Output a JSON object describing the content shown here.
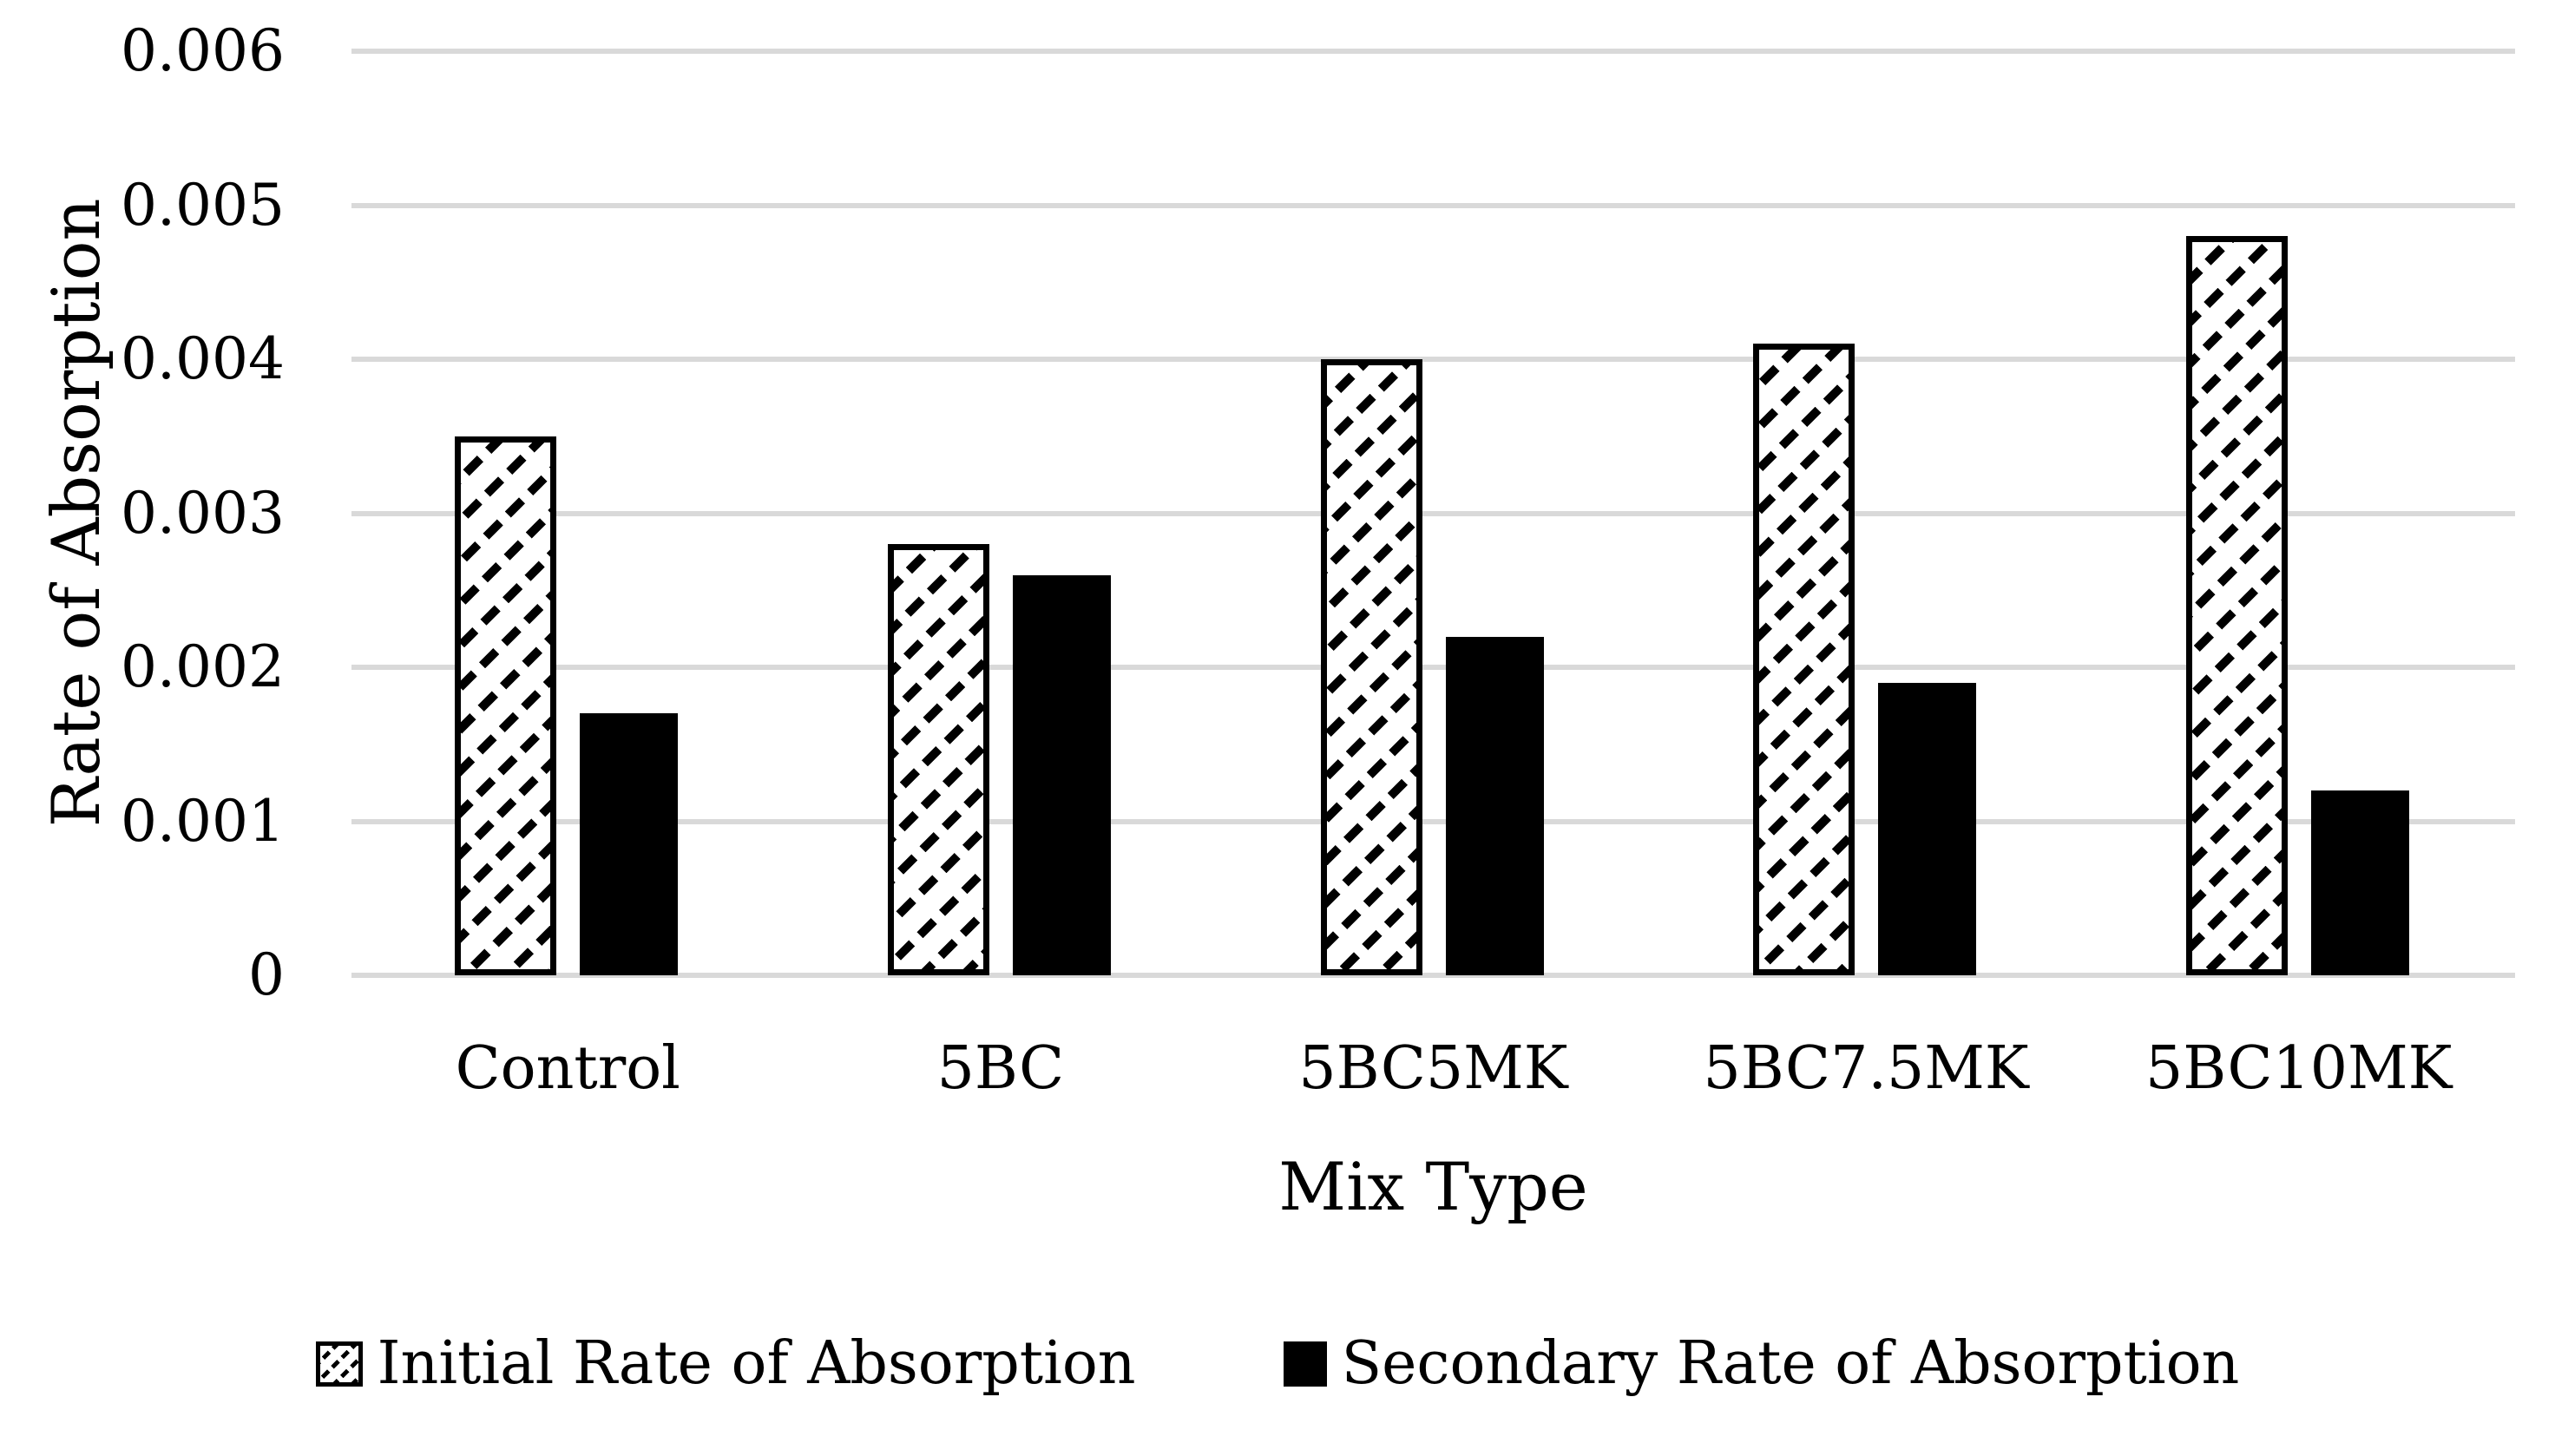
{
  "figure": {
    "background_color": "#ffffff",
    "text_color": "#000000"
  },
  "chart_data": {
    "type": "bar",
    "title": "",
    "xlabel": "Mix Type",
    "ylabel": "Rate of Absorption",
    "categories": [
      "Control",
      "5BC",
      "5BC5MK",
      "5BC7.5MK",
      "5BC10MK"
    ],
    "series": [
      {
        "name": "Initial Rate of Absorption",
        "style": "hatched-diagonal",
        "values": [
          0.0035,
          0.0028,
          0.004,
          0.0041,
          0.0048
        ]
      },
      {
        "name": "Secondary Rate of Absorption",
        "style": "solid-black",
        "values": [
          0.0017,
          0.0026,
          0.0022,
          0.0019,
          0.0012
        ]
      }
    ],
    "ylim": [
      0,
      0.006
    ],
    "ytick_step": 0.001,
    "ytick_labels": [
      "0",
      "0.001",
      "0.002",
      "0.003",
      "0.004",
      "0.005",
      "0.006"
    ],
    "grid": "horizontal",
    "gridline_color": "#d9d9d9",
    "bar_color": "#000000",
    "legend_position": "bottom"
  }
}
